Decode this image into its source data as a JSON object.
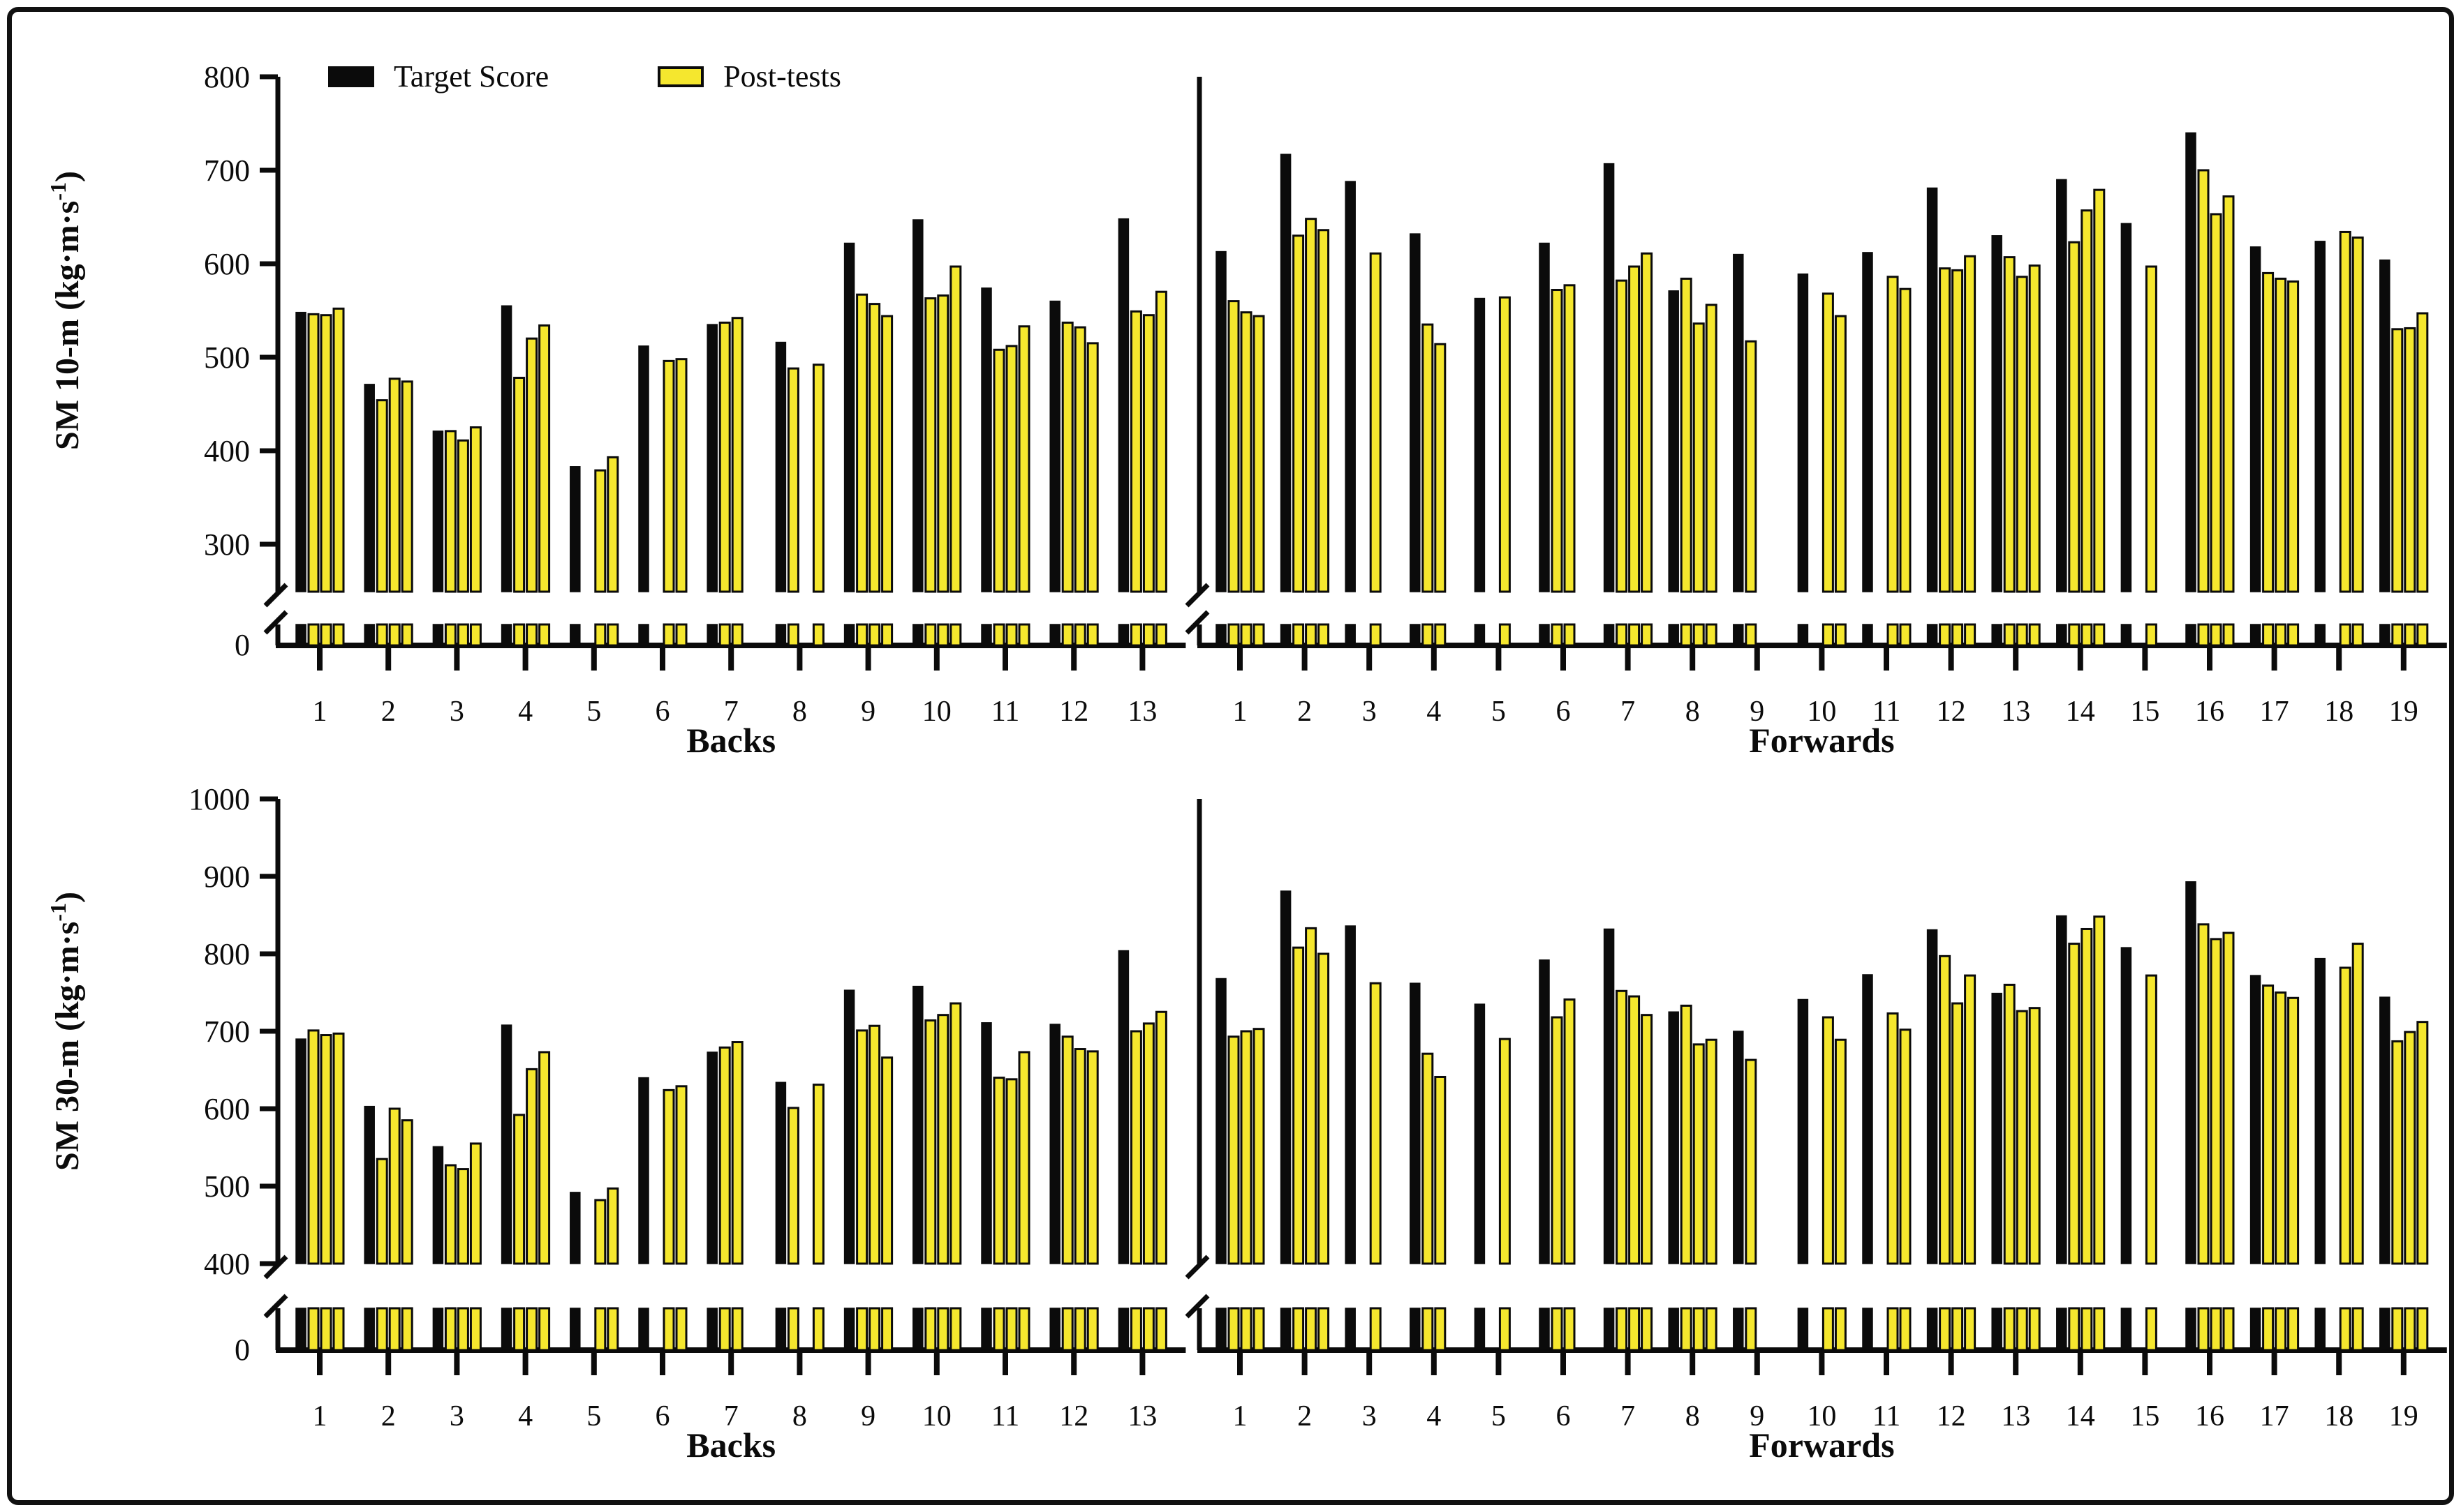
{
  "figure": {
    "background": "#ffffff",
    "border_color": "#111111"
  },
  "legend": {
    "items": [
      {
        "name": "target-score",
        "label": "Target Score",
        "swatch_color": "#0b0b0b",
        "swatch_border": "#0b0b0b"
      },
      {
        "name": "post-tests",
        "label": "Post-tests",
        "swatch_color": "#F5E72E",
        "swatch_border": "#0b0b0b"
      }
    ]
  },
  "colors": {
    "target_bar": "#0b0b0b",
    "posttest_fill": "#F5E72E",
    "posttest_stroke": "#0b0b0b",
    "axis": "#0b0b0b"
  },
  "chart_data": [
    {
      "type": "bar",
      "measure": "SM 10-m",
      "ylabel_text": "SM 10-m (kg·m·s⁻¹)",
      "ylabel_prefix": "SM 10-m (kg·m·s",
      "ylabel_sup": "-1",
      "ylabel_suffix": ")",
      "ylim": [
        300,
        800
      ],
      "yticks": [
        300,
        400,
        500,
        600,
        700,
        800
      ],
      "baseline_label": "0",
      "axis_break": true,
      "legend_series": [
        "Target Score",
        "Post-tests"
      ],
      "groups": [
        {
          "label": "Backs",
          "players": [
            {
              "id": "1",
              "target": 548,
              "posts": [
                546,
                545,
                552
              ]
            },
            {
              "id": "2",
              "target": 471,
              "posts": [
                454,
                477,
                474
              ]
            },
            {
              "id": "3",
              "target": 421,
              "posts": [
                421,
                411,
                425
              ]
            },
            {
              "id": "4",
              "target": 555,
              "posts": [
                478,
                520,
                534
              ]
            },
            {
              "id": "5",
              "target": 383,
              "posts": [
                null,
                379,
                393
              ]
            },
            {
              "id": "6",
              "target": 512,
              "posts": [
                null,
                496,
                498
              ]
            },
            {
              "id": "7",
              "target": 535,
              "posts": [
                537,
                542,
                null
              ]
            },
            {
              "id": "8",
              "target": 516,
              "posts": [
                488,
                null,
                492
              ]
            },
            {
              "id": "9",
              "target": 622,
              "posts": [
                567,
                557,
                544
              ]
            },
            {
              "id": "10",
              "target": 647,
              "posts": [
                563,
                566,
                597
              ]
            },
            {
              "id": "11",
              "target": 574,
              "posts": [
                508,
                512,
                533
              ]
            },
            {
              "id": "12",
              "target": 560,
              "posts": [
                537,
                532,
                515
              ]
            },
            {
              "id": "13",
              "target": 648,
              "posts": [
                549,
                545,
                570
              ]
            }
          ]
        },
        {
          "label": "Forwards",
          "players": [
            {
              "id": "1",
              "target": 613,
              "posts": [
                560,
                548,
                544
              ]
            },
            {
              "id": "2",
              "target": 717,
              "posts": [
                630,
                648,
                636
              ]
            },
            {
              "id": "3",
              "target": 688,
              "posts": [
                null,
                611,
                null
              ]
            },
            {
              "id": "4",
              "target": 632,
              "posts": [
                535,
                514,
                null
              ]
            },
            {
              "id": "5",
              "target": 563,
              "posts": [
                null,
                564,
                null
              ]
            },
            {
              "id": "6",
              "target": 622,
              "posts": [
                572,
                577,
                null
              ]
            },
            {
              "id": "7",
              "target": 707,
              "posts": [
                582,
                597,
                611
              ]
            },
            {
              "id": "8",
              "target": 571,
              "posts": [
                584,
                536,
                556
              ]
            },
            {
              "id": "9",
              "target": 610,
              "posts": [
                517,
                null,
                null
              ]
            },
            {
              "id": "10",
              "target": 589,
              "posts": [
                null,
                568,
                544
              ]
            },
            {
              "id": "11",
              "target": 612,
              "posts": [
                null,
                586,
                573
              ]
            },
            {
              "id": "12",
              "target": 681,
              "posts": [
                595,
                593,
                608
              ]
            },
            {
              "id": "13",
              "target": 630,
              "posts": [
                607,
                586,
                598
              ]
            },
            {
              "id": "14",
              "target": 690,
              "posts": [
                623,
                657,
                679
              ]
            },
            {
              "id": "15",
              "target": 643,
              "posts": [
                null,
                597,
                null
              ]
            },
            {
              "id": "16",
              "target": 740,
              "posts": [
                700,
                653,
                672
              ]
            },
            {
              "id": "17",
              "target": 618,
              "posts": [
                590,
                584,
                581
              ]
            },
            {
              "id": "18",
              "target": 624,
              "posts": [
                null,
                634,
                628
              ]
            },
            {
              "id": "19",
              "target": 604,
              "posts": [
                530,
                531,
                547
              ]
            }
          ]
        }
      ]
    },
    {
      "type": "bar",
      "measure": "SM 30-m",
      "ylabel_text": "SM 30-m (kg·m·s⁻¹)",
      "ylabel_prefix": "SM 30-m (kg·m·s",
      "ylabel_sup": "-1",
      "ylabel_suffix": ")",
      "ylim": [
        400,
        1000
      ],
      "yticks": [
        400,
        500,
        600,
        700,
        800,
        900,
        1000
      ],
      "baseline_label": "0",
      "axis_break": true,
      "legend_series": [
        "Target Score",
        "Post-tests"
      ],
      "groups": [
        {
          "label": "Backs",
          "players": [
            {
              "id": "1",
              "target": 690,
              "posts": [
                701,
                695,
                697
              ]
            },
            {
              "id": "2",
              "target": 603,
              "posts": [
                535,
                600,
                585
              ]
            },
            {
              "id": "3",
              "target": 551,
              "posts": [
                527,
                522,
                555
              ]
            },
            {
              "id": "4",
              "target": 708,
              "posts": [
                592,
                651,
                673
              ]
            },
            {
              "id": "5",
              "target": 492,
              "posts": [
                null,
                482,
                497
              ]
            },
            {
              "id": "6",
              "target": 640,
              "posts": [
                null,
                624,
                629
              ]
            },
            {
              "id": "7",
              "target": 673,
              "posts": [
                679,
                686,
                null
              ]
            },
            {
              "id": "8",
              "target": 634,
              "posts": [
                601,
                null,
                631
              ]
            },
            {
              "id": "9",
              "target": 753,
              "posts": [
                701,
                707,
                666
              ]
            },
            {
              "id": "10",
              "target": 758,
              "posts": [
                714,
                721,
                736
              ]
            },
            {
              "id": "11",
              "target": 711,
              "posts": [
                640,
                638,
                673
              ]
            },
            {
              "id": "12",
              "target": 709,
              "posts": [
                693,
                677,
                674
              ]
            },
            {
              "id": "13",
              "target": 804,
              "posts": [
                700,
                710,
                725
              ]
            }
          ]
        },
        {
          "label": "Forwards",
          "players": [
            {
              "id": "1",
              "target": 768,
              "posts": [
                693,
                700,
                703
              ]
            },
            {
              "id": "2",
              "target": 881,
              "posts": [
                808,
                833,
                800
              ]
            },
            {
              "id": "3",
              "target": 836,
              "posts": [
                null,
                762,
                null
              ]
            },
            {
              "id": "4",
              "target": 762,
              "posts": [
                671,
                641,
                null
              ]
            },
            {
              "id": "5",
              "target": 735,
              "posts": [
                null,
                690,
                null
              ]
            },
            {
              "id": "6",
              "target": 792,
              "posts": [
                718,
                741,
                null
              ]
            },
            {
              "id": "7",
              "target": 832,
              "posts": [
                752,
                745,
                721
              ]
            },
            {
              "id": "8",
              "target": 725,
              "posts": [
                733,
                683,
                689
              ]
            },
            {
              "id": "9",
              "target": 700,
              "posts": [
                663,
                null,
                null
              ]
            },
            {
              "id": "10",
              "target": 741,
              "posts": [
                null,
                718,
                689
              ]
            },
            {
              "id": "11",
              "target": 773,
              "posts": [
                null,
                723,
                702
              ]
            },
            {
              "id": "12",
              "target": 831,
              "posts": [
                797,
                736,
                772
              ]
            },
            {
              "id": "13",
              "target": 749,
              "posts": [
                760,
                726,
                730
              ]
            },
            {
              "id": "14",
              "target": 849,
              "posts": [
                813,
                832,
                848
              ]
            },
            {
              "id": "15",
              "target": 808,
              "posts": [
                null,
                772,
                null
              ]
            },
            {
              "id": "16",
              "target": 893,
              "posts": [
                838,
                819,
                827
              ]
            },
            {
              "id": "17",
              "target": 772,
              "posts": [
                759,
                750,
                743
              ]
            },
            {
              "id": "18",
              "target": 794,
              "posts": [
                null,
                782,
                813
              ]
            },
            {
              "id": "19",
              "target": 744,
              "posts": [
                687,
                699,
                712
              ]
            }
          ]
        }
      ]
    }
  ]
}
